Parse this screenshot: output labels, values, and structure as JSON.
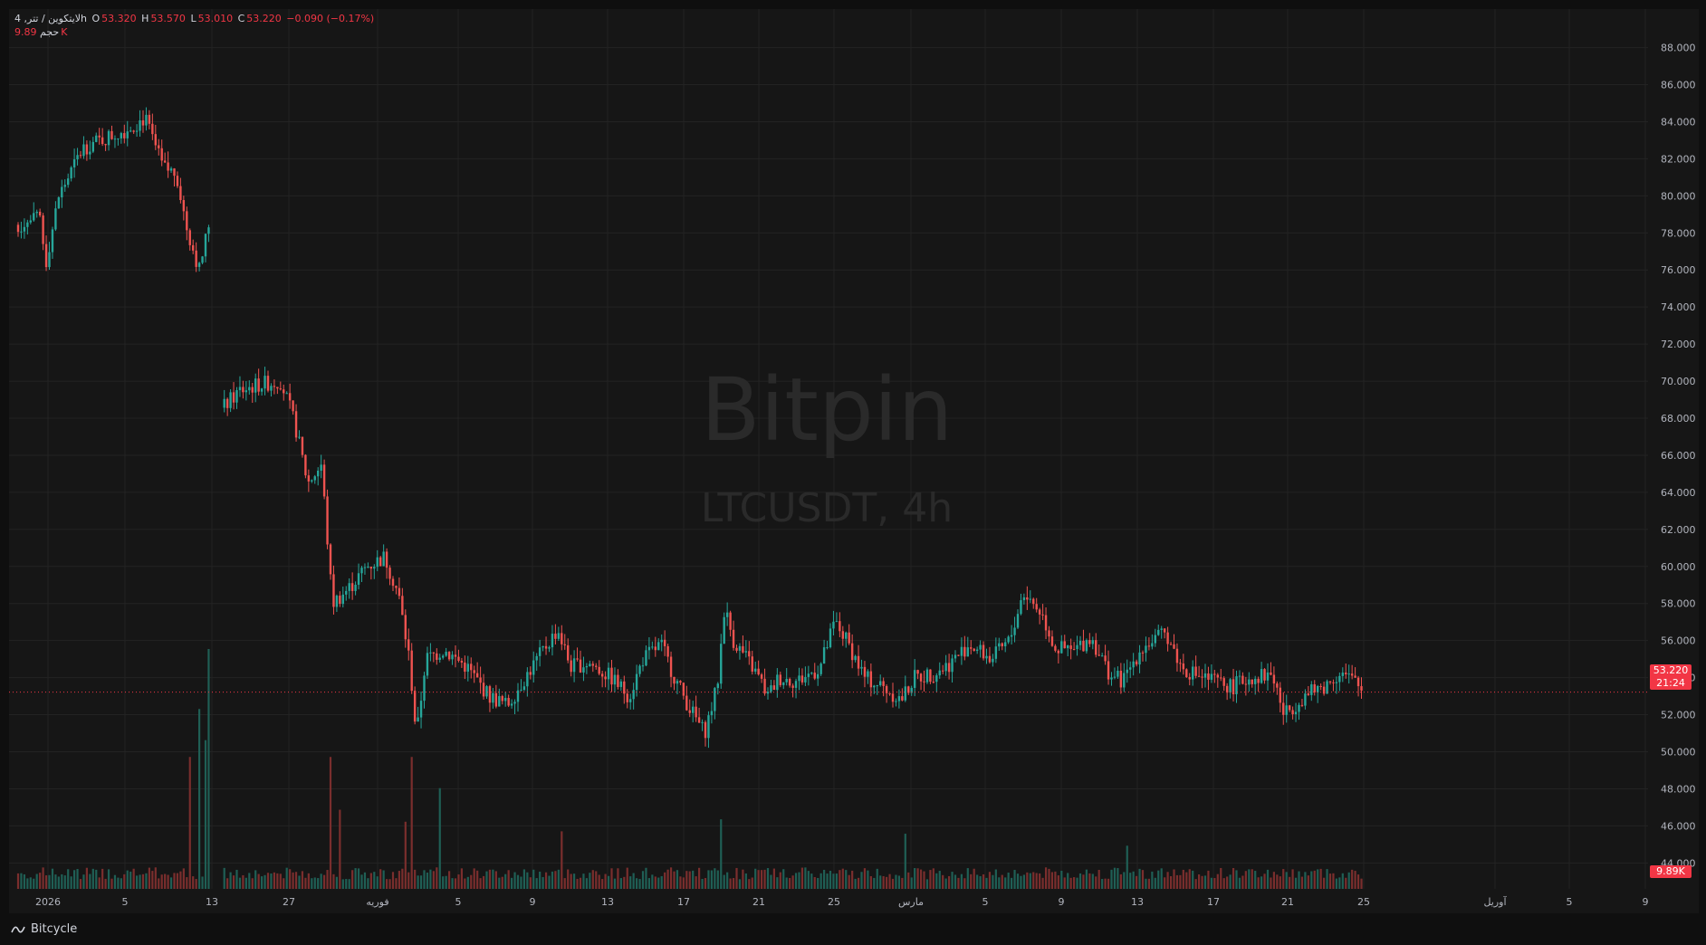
{
  "legend": {
    "symbol": "لایتکوین / تتر, 4h",
    "o_label": "O",
    "o_value": "53.320",
    "h_label": "H",
    "h_value": "53.570",
    "l_label": "L",
    "l_value": "53.010",
    "c_label": "C",
    "c_value": "53.220",
    "change": "−0.090 (−0.17%)",
    "volume_label": "حجم",
    "volume_value": "9.89K"
  },
  "watermark": {
    "brand": "Bitpin",
    "symbol": "LTCUSDT, 4h"
  },
  "last_price": {
    "price": "53.220",
    "countdown": "21:24",
    "volume": "9.89K"
  },
  "footer": {
    "brand": "Bitcycle"
  },
  "colors": {
    "up": "#26a69a",
    "down": "#ef5350",
    "background": "#161616",
    "grid": "#232323",
    "text": "#b2b5be"
  },
  "chart_data": {
    "type": "candlestick",
    "symbol": "LTCUSDT",
    "interval": "4h",
    "y_ticks": [
      "88.000",
      "86.000",
      "84.000",
      "82.000",
      "80.000",
      "78.000",
      "76.000",
      "74.000",
      "72.000",
      "70.000",
      "68.000",
      "66.000",
      "64.000",
      "62.000",
      "60.000",
      "58.000",
      "56.000",
      "54.000",
      "52.000",
      "50.000",
      "48.000",
      "46.000",
      "44.000"
    ],
    "ylim": [
      42.6,
      89.2
    ],
    "x_ticks": [
      "2026",
      "5",
      "13",
      "27",
      "فوریه",
      "5",
      "9",
      "13",
      "17",
      "21",
      "25",
      "مارس",
      "5",
      "9",
      "13",
      "17",
      "21",
      "25",
      "آوریل",
      "5",
      "9"
    ],
    "last_close": 53.22,
    "price_path": [
      {
        "t": 0,
        "p": 78.4
      },
      {
        "t": 25,
        "p": 78.8
      },
      {
        "t": 30,
        "p": 76.2
      },
      {
        "t": 45,
        "p": 80.0
      },
      {
        "t": 72,
        "p": 82.6
      },
      {
        "t": 120,
        "p": 83.6
      },
      {
        "t": 140,
        "p": 84.2
      },
      {
        "t": 160,
        "p": 81.5
      },
      {
        "t": 175,
        "p": 81.2
      },
      {
        "t": 185,
        "p": 78.5
      },
      {
        "t": 200,
        "p": 76.0
      },
      {
        "t": 212,
        "p": 78.8
      },
      {
        "t": 215,
        "p": null
      },
      {
        "t": 225,
        "p": 68.5
      },
      {
        "t": 245,
        "p": 69.5
      },
      {
        "t": 265,
        "p": 69.8
      },
      {
        "t": 290,
        "p": 70.0
      },
      {
        "t": 305,
        "p": 67.8
      },
      {
        "t": 320,
        "p": 64.5
      },
      {
        "t": 335,
        "p": 65.5
      },
      {
        "t": 347,
        "p": 58.0
      },
      {
        "t": 365,
        "p": 58.8
      },
      {
        "t": 385,
        "p": 60.0
      },
      {
        "t": 405,
        "p": 60.5
      },
      {
        "t": 420,
        "p": 58.5
      },
      {
        "t": 432,
        "p": 55.0
      },
      {
        "t": 440,
        "p": 50.8
      },
      {
        "t": 450,
        "p": 55.0
      },
      {
        "t": 470,
        "p": 55.5
      },
      {
        "t": 495,
        "p": 54.6
      },
      {
        "t": 520,
        "p": 53.0
      },
      {
        "t": 540,
        "p": 52.5
      },
      {
        "t": 560,
        "p": 54.0
      },
      {
        "t": 580,
        "p": 55.5
      },
      {
        "t": 596,
        "p": 56.6
      },
      {
        "t": 610,
        "p": 54.6
      },
      {
        "t": 630,
        "p": 54.8
      },
      {
        "t": 655,
        "p": 54.0
      },
      {
        "t": 675,
        "p": 53.0
      },
      {
        "t": 690,
        "p": 55.0
      },
      {
        "t": 710,
        "p": 55.8
      },
      {
        "t": 725,
        "p": 54.0
      },
      {
        "t": 740,
        "p": 52.5
      },
      {
        "t": 758,
        "p": 51.0
      },
      {
        "t": 772,
        "p": 53.5
      },
      {
        "t": 780,
        "p": 57.8
      },
      {
        "t": 790,
        "p": 56.0
      },
      {
        "t": 805,
        "p": 55.0
      },
      {
        "t": 818,
        "p": 54.0
      },
      {
        "t": 828,
        "p": 53.0
      },
      {
        "t": 840,
        "p": 54.0
      },
      {
        "t": 860,
        "p": 53.8
      },
      {
        "t": 885,
        "p": 54.5
      },
      {
        "t": 902,
        "p": 57.0
      },
      {
        "t": 915,
        "p": 56.0
      },
      {
        "t": 935,
        "p": 54.0
      },
      {
        "t": 955,
        "p": 53.5
      },
      {
        "t": 975,
        "p": 52.8
      },
      {
        "t": 990,
        "p": 54.0
      },
      {
        "t": 1010,
        "p": 54.2
      },
      {
        "t": 1030,
        "p": 54.8
      },
      {
        "t": 1050,
        "p": 55.8
      },
      {
        "t": 1075,
        "p": 55.0
      },
      {
        "t": 1095,
        "p": 56.0
      },
      {
        "t": 1110,
        "p": 58.6
      },
      {
        "t": 1130,
        "p": 57.5
      },
      {
        "t": 1145,
        "p": 55.6
      },
      {
        "t": 1165,
        "p": 55.4
      },
      {
        "t": 1185,
        "p": 56.2
      },
      {
        "t": 1205,
        "p": 54.2
      },
      {
        "t": 1220,
        "p": 53.8
      },
      {
        "t": 1240,
        "p": 55.6
      },
      {
        "t": 1268,
        "p": 56.4
      },
      {
        "t": 1285,
        "p": 54.5
      },
      {
        "t": 1310,
        "p": 54.0
      },
      {
        "t": 1340,
        "p": 53.5
      },
      {
        "t": 1360,
        "p": 54.0
      },
      {
        "t": 1385,
        "p": 54.2
      },
      {
        "t": 1398,
        "p": 52.0
      },
      {
        "t": 1420,
        "p": 53.0
      },
      {
        "t": 1445,
        "p": 53.6
      },
      {
        "t": 1460,
        "p": 54.3
      },
      {
        "t": 1475,
        "p": 53.8
      },
      {
        "t": 1485,
        "p": 53.22
      }
    ],
    "volume_spikes": [
      {
        "t": 190,
        "v": 0.55
      },
      {
        "t": 200,
        "v": 0.75
      },
      {
        "t": 206,
        "v": 0.62
      },
      {
        "t": 211,
        "v": 1.0
      },
      {
        "t": 345,
        "v": 0.55
      },
      {
        "t": 356,
        "v": 0.33
      },
      {
        "t": 428,
        "v": 0.28
      },
      {
        "t": 436,
        "v": 0.55
      },
      {
        "t": 466,
        "v": 0.42
      },
      {
        "t": 602,
        "v": 0.24
      },
      {
        "t": 775,
        "v": 0.29
      },
      {
        "t": 981,
        "v": 0.23
      },
      {
        "t": 1225,
        "v": 0.18
      }
    ]
  }
}
